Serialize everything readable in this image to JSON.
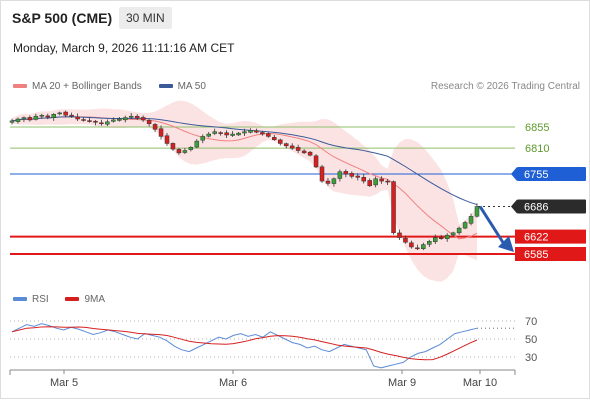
{
  "header": {
    "title": "S&P 500 (CME)",
    "timeframe": "30 MIN"
  },
  "datetime": "Monday, March 9, 2026 11:11:16 AM CET",
  "legend": {
    "main": [
      {
        "label": "MA 20 + Bollinger Bands",
        "color": "#f08080"
      },
      {
        "label": "MA 50",
        "color": "#3a5a9a"
      }
    ],
    "credit": "Research © 2026 Trading Central",
    "rsi": [
      {
        "label": "RSI",
        "color": "#5b8bd8"
      },
      {
        "label": "9MA",
        "color": "#d62020"
      }
    ]
  },
  "chart_data": {
    "type": "candlestick",
    "x_labels": [
      "Mar 5",
      "Mar 6",
      "Mar 9",
      "Mar 10"
    ],
    "price_levels": [
      {
        "value": "6855",
        "kind": "resistance",
        "color": "#8fbf68",
        "style": "green-line"
      },
      {
        "value": "6810",
        "kind": "resistance",
        "color": "#8fbf68",
        "style": "green-line"
      },
      {
        "value": "6755",
        "kind": "pivot",
        "color": "#1f5fd6",
        "style": "blue-line"
      },
      {
        "value": "6686",
        "kind": "last",
        "color": "#333333",
        "style": "dark-tag"
      },
      {
        "value": "6622",
        "kind": "support",
        "color": "#e01818",
        "style": "red-line"
      },
      {
        "value": "6585",
        "kind": "support",
        "color": "#e01818",
        "style": "red-line"
      }
    ],
    "forecast": {
      "direction": "down",
      "from": 6686,
      "to": 6585
    },
    "price_series_approx": [
      6868,
      6872,
      6875,
      6870,
      6878,
      6880,
      6876,
      6882,
      6885,
      6880,
      6878,
      6872,
      6870,
      6868,
      6865,
      6862,
      6866,
      6870,
      6872,
      6875,
      6878,
      6874,
      6870,
      6862,
      6850,
      6835,
      6820,
      6808,
      6800,
      6805,
      6812,
      6825,
      6835,
      6840,
      6845,
      6842,
      6838,
      6840,
      6842,
      6845,
      6848,
      6844,
      6840,
      6835,
      6828,
      6820,
      6815,
      6810,
      6805,
      6800,
      6795,
      6770,
      6740,
      6735,
      6745,
      6760,
      6755,
      6750,
      6748,
      6740,
      6730,
      6745,
      6740,
      6738,
      6630,
      6620,
      6610,
      6600,
      6598,
      6605,
      6612,
      6620,
      6618,
      6625,
      6630,
      6640,
      6652,
      6665,
      6686
    ],
    "rsi": {
      "levels": [
        "70",
        "50",
        "30"
      ],
      "values_approx": [
        58,
        62,
        66,
        64,
        67,
        65,
        62,
        60,
        63,
        61,
        58,
        55,
        57,
        60,
        58,
        55,
        52,
        50,
        56,
        54,
        52,
        48,
        42,
        38,
        36,
        40,
        44,
        48,
        52,
        50,
        54,
        56,
        53,
        55,
        52,
        58,
        54,
        50,
        46,
        44,
        40,
        42,
        38,
        36,
        40,
        44,
        42,
        40,
        38,
        20,
        18,
        20,
        22,
        24,
        30,
        34,
        36,
        40,
        44,
        50,
        56,
        58,
        60,
        62
      ]
    }
  }
}
